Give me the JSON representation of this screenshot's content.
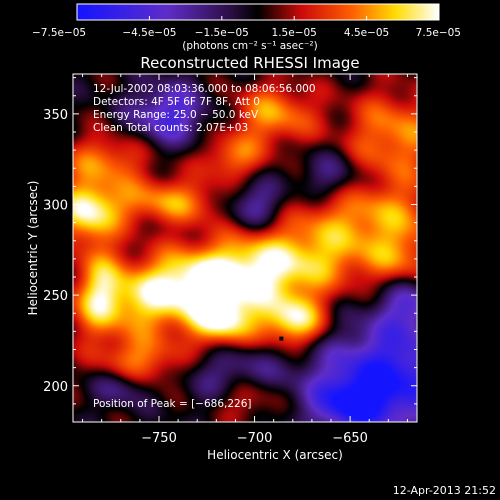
{
  "chart_data": {
    "type": "heatmap",
    "title": "Reconstructed RHESSI Image",
    "xlabel": "Heliocentric X (arcsec)",
    "ylabel": "Heliocentric Y (arcsec)",
    "x_range": [
      -795,
      -615
    ],
    "y_range": [
      180,
      372
    ],
    "x_ticks": [
      -750,
      -700,
      -650
    ],
    "y_ticks": [
      200,
      250,
      300,
      350
    ],
    "x_tick_labels": [
      "−750",
      "−700",
      "−650"
    ],
    "y_tick_labels": [
      "200",
      "250",
      "300",
      "350"
    ],
    "colorbar": {
      "range": [
        -7.5e-05,
        7.5e-05
      ],
      "ticks": [
        -7.5e-05,
        -4.5e-05,
        -1.5e-05,
        1.5e-05,
        4.5e-05,
        7.5e-05
      ],
      "tick_labels": [
        "−7.5e−05",
        "−4.5e−05",
        "−1.5e−05",
        "1.5e−05",
        "4.5e−05",
        "7.5e−05"
      ],
      "units": "(photons cm⁻² s⁻¹ asec⁻²)"
    },
    "annotations": [
      "12-Jul-2002 08:03:36.000 to 08:06:56.000",
      "Detectors: 4F 5F 6F 7F 8F, Att 0",
      "Energy Range: 25.0 − 50.0 keV",
      "Clean     Total counts: 2.07E+03",
      "Position of Peak = [−686,226]"
    ],
    "peak": {
      "x": -686,
      "y": 226
    },
    "blobs": [
      {
        "x": -722,
        "y": 258,
        "rx": 32,
        "ry": 12,
        "amp": 7e-05
      },
      {
        "x": -680,
        "y": 272,
        "rx": 34,
        "ry": 13,
        "amp": 4.8e-05
      },
      {
        "x": -760,
        "y": 244,
        "rx": 26,
        "ry": 12,
        "amp": 4.4e-05
      },
      {
        "x": -640,
        "y": 295,
        "rx": 30,
        "ry": 13,
        "amp": 4.2e-05
      },
      {
        "x": -788,
        "y": 297,
        "rx": 12,
        "ry": 12,
        "amp": 6.4e-05
      },
      {
        "x": -778,
        "y": 325,
        "rx": 16,
        "ry": 10,
        "amp": 4e-05
      },
      {
        "x": -745,
        "y": 302,
        "rx": 22,
        "ry": 9,
        "amp": 4.6e-05
      },
      {
        "x": -712,
        "y": 326,
        "rx": 12,
        "ry": 9,
        "amp": 4e-05
      },
      {
        "x": -690,
        "y": 350,
        "rx": 16,
        "ry": 12,
        "amp": 4.6e-05
      },
      {
        "x": -627,
        "y": 338,
        "rx": 18,
        "ry": 18,
        "amp": 4.6e-05
      },
      {
        "x": -717,
        "y": 236,
        "rx": 12,
        "ry": 10,
        "amp": 6.6e-05
      },
      {
        "x": -680,
        "y": 236,
        "rx": 12,
        "ry": 10,
        "amp": 6.8e-05
      },
      {
        "x": -760,
        "y": 214,
        "rx": 16,
        "ry": 10,
        "amp": 4.4e-05
      },
      {
        "x": -704,
        "y": 194,
        "rx": 12,
        "ry": 9,
        "amp": 3.6e-05
      },
      {
        "x": -782,
        "y": 256,
        "rx": 8,
        "ry": 20,
        "amp": 3.6e-05
      },
      {
        "x": -622,
        "y": 269,
        "rx": 14,
        "ry": 12,
        "amp": 3e-05
      },
      {
        "x": -745,
        "y": 350,
        "rx": 14,
        "ry": 12,
        "amp": -5e-05
      },
      {
        "x": -630,
        "y": 205,
        "rx": 26,
        "ry": 20,
        "amp": -7e-05
      },
      {
        "x": -650,
        "y": 190,
        "rx": 14,
        "ry": 10,
        "amp": -5e-05
      },
      {
        "x": -700,
        "y": 300,
        "rx": 12,
        "ry": 10,
        "amp": -4.2e-05
      },
      {
        "x": -620,
        "y": 245,
        "rx": 12,
        "ry": 12,
        "amp": -3.8e-05
      },
      {
        "x": -710,
        "y": 205,
        "rx": 18,
        "ry": 12,
        "amp": -3.2e-05
      },
      {
        "x": -770,
        "y": 200,
        "rx": 10,
        "ry": 8,
        "amp": -3e-05
      },
      {
        "x": -660,
        "y": 315,
        "rx": 12,
        "ry": 10,
        "amp": -3e-05
      }
    ]
  },
  "footer": {
    "timestamp": "12-Apr-2013 21:52"
  }
}
